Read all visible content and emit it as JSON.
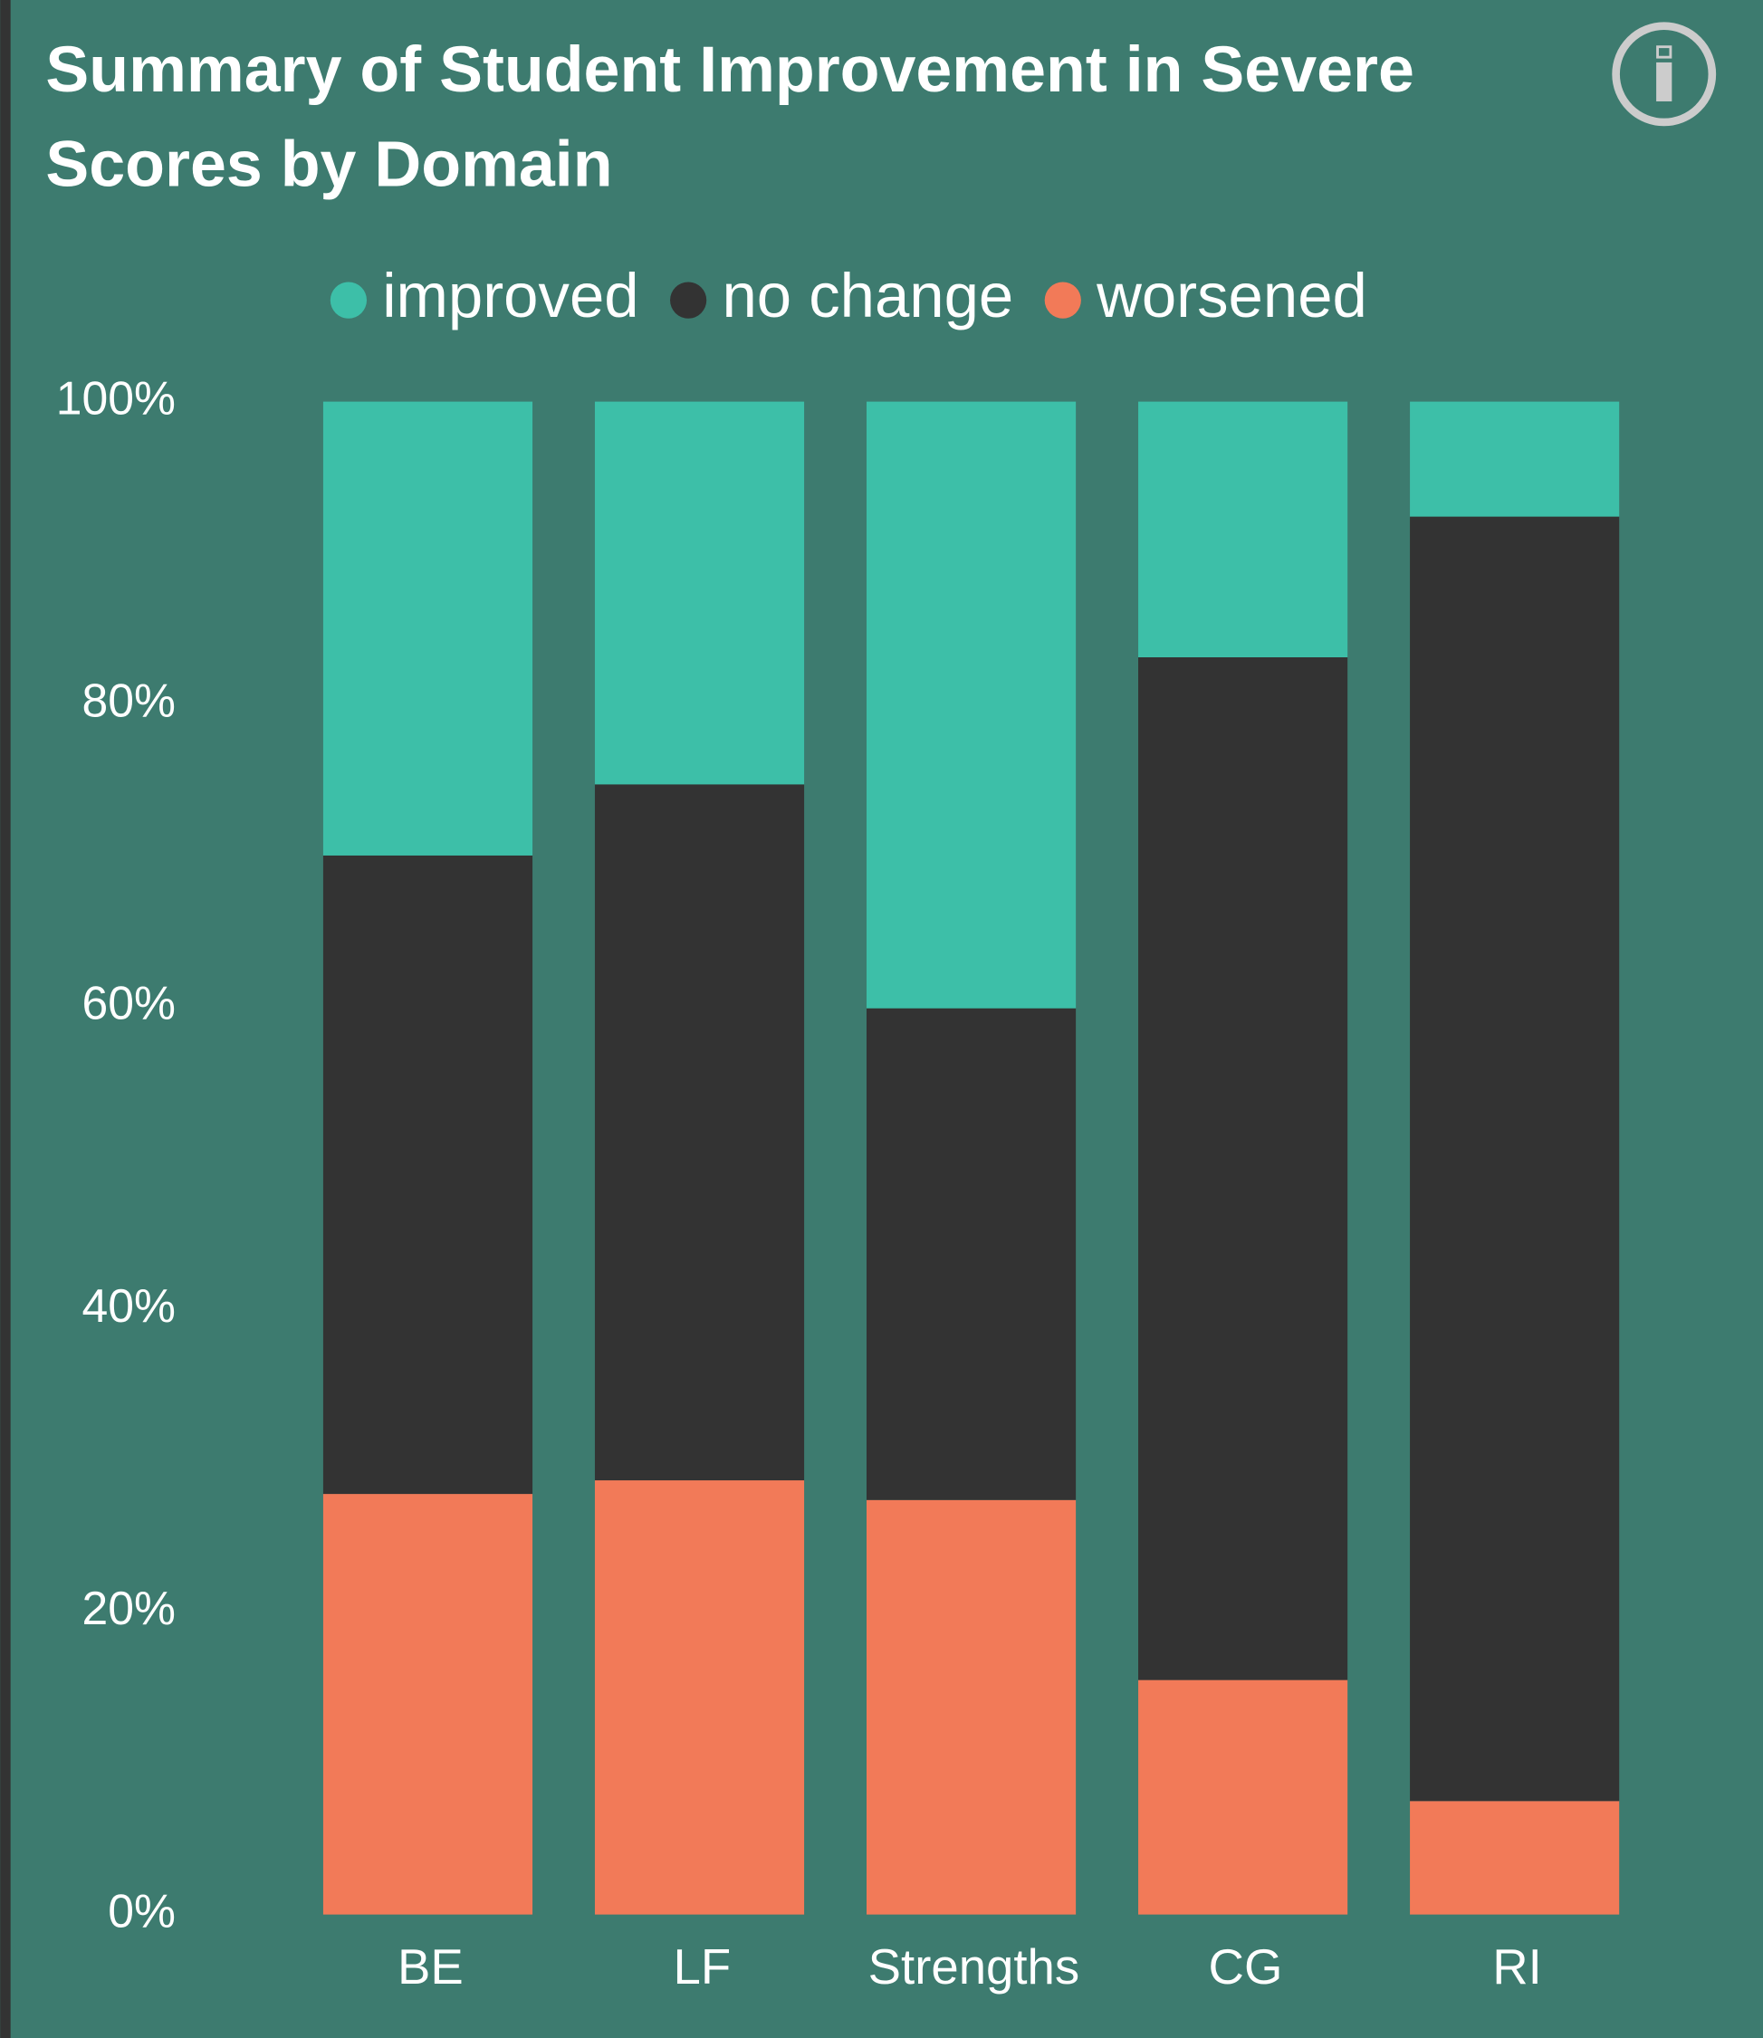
{
  "chart_data": {
    "type": "stacked_bar",
    "title": "Summary of Student Improvement in Severe Scores by Domain",
    "categories": [
      "BE",
      "LF",
      "Strengths",
      "CG",
      "RI"
    ],
    "series": [
      {
        "name": "improved",
        "color": "#3dbfa8",
        "values": [
          30.0,
          25.3,
          40.1,
          16.9,
          7.6
        ]
      },
      {
        "name": "no change",
        "color": "#333333",
        "values": [
          42.2,
          46.0,
          32.5,
          67.6,
          84.9
        ]
      },
      {
        "name": "worsened",
        "color": "#f27a58",
        "values": [
          27.8,
          28.7,
          27.4,
          15.5,
          7.5
        ]
      }
    ],
    "ylim": [
      0,
      100
    ],
    "yticks": [
      {
        "value": 0,
        "label": "0%"
      },
      {
        "value": 20,
        "label": "20%"
      },
      {
        "value": 40,
        "label": "40%"
      },
      {
        "value": 60,
        "label": "60%"
      },
      {
        "value": 80,
        "label": "80%"
      },
      {
        "value": 100,
        "label": "100%"
      }
    ],
    "grid": false,
    "legend": "top"
  }
}
